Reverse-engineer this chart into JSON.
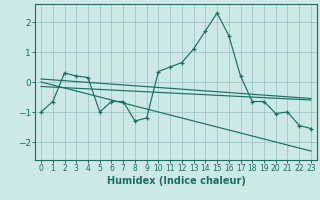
{
  "bg_color": "#cce8e8",
  "grid_color": "#9ec8c8",
  "line_color": "#1a7060",
  "xlabel": "Humidex (Indice chaleur)",
  "ylim": [
    -2.6,
    2.6
  ],
  "xlim": [
    -0.5,
    23.5
  ],
  "yticks": [
    -2,
    -1,
    0,
    1,
    2
  ],
  "xticks": [
    0,
    1,
    2,
    3,
    4,
    5,
    6,
    7,
    8,
    9,
    10,
    11,
    12,
    13,
    14,
    15,
    16,
    17,
    18,
    19,
    20,
    21,
    22,
    23
  ],
  "series1_x": [
    0,
    1,
    2,
    3,
    4,
    5,
    6,
    7,
    8,
    9,
    10,
    11,
    12,
    13,
    14,
    15,
    16,
    17,
    18,
    19,
    20,
    21,
    22,
    23
  ],
  "series1_y": [
    -1.0,
    -0.65,
    0.3,
    0.2,
    0.15,
    -1.0,
    -0.65,
    -0.65,
    -1.3,
    -1.2,
    0.35,
    0.5,
    0.65,
    1.1,
    1.7,
    2.3,
    1.55,
    0.2,
    -0.65,
    -0.65,
    -1.05,
    -1.0,
    -1.45,
    -1.55
  ],
  "series2_x": [
    0,
    23
  ],
  "series2_y": [
    0.1,
    -0.55
  ],
  "series3_x": [
    0,
    23
  ],
  "series3_y": [
    0.0,
    -2.3
  ],
  "series4_x": [
    0,
    23
  ],
  "series4_y": [
    -0.15,
    -0.6
  ]
}
